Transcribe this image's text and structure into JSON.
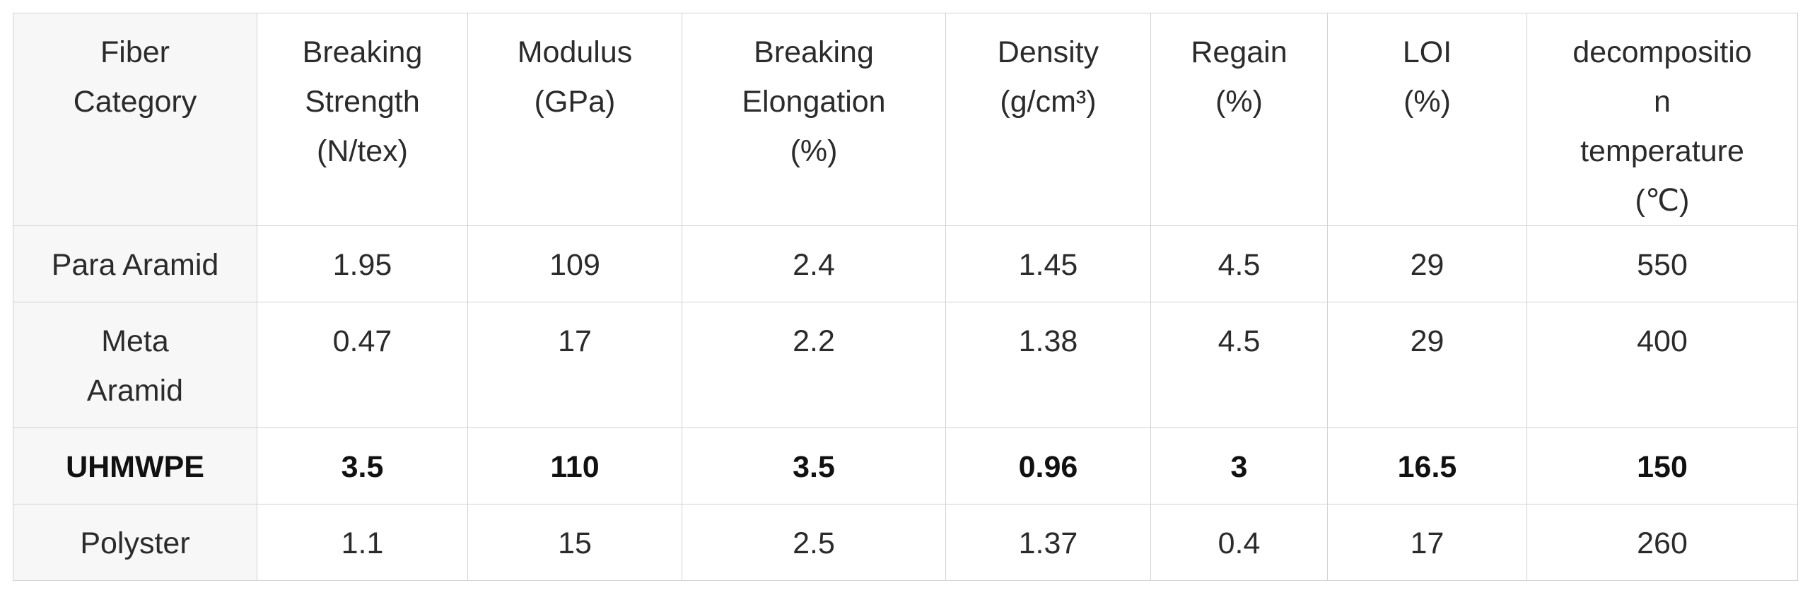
{
  "table": {
    "headers": [
      "Fiber Category",
      "Breaking Strength (N/tex)",
      "Modulus (GPa)",
      "Breaking Elongation (%)",
      "Density (g/cm³)",
      "Regain (%)",
      "LOI (%)",
      "decomposition temperature (℃)"
    ],
    "header_lines": [
      [
        "Fiber",
        "Category"
      ],
      [
        "Breaking",
        "Strength",
        "(N/tex)"
      ],
      [
        "Modulus",
        "(GPa)"
      ],
      [
        "Breaking",
        "Elongation",
        "(%)"
      ],
      [
        "Density",
        "(g/cm³)"
      ],
      [
        "Regain",
        "(%)"
      ],
      [
        "LOI",
        "(%)"
      ],
      [
        "decompositio",
        "n",
        "temperature",
        "(℃)"
      ]
    ],
    "rows": [
      {
        "cells": [
          "Para Aramid",
          "1.95",
          "109",
          "2.4",
          "1.45",
          "4.5",
          "29",
          "550"
        ],
        "bold": false
      },
      {
        "cells": [
          "Meta Aramid",
          "0.47",
          "17",
          "2.2",
          "1.38",
          "4.5",
          "29",
          "400"
        ],
        "bold": false
      },
      {
        "cells": [
          "UHMWPE",
          "3.5",
          "110",
          "3.5",
          "0.96",
          "3",
          "16.5",
          "150"
        ],
        "bold": true
      },
      {
        "cells": [
          "Polyster",
          "1.1",
          "15",
          "2.5",
          "1.37",
          "0.4",
          "17",
          "260"
        ],
        "bold": false
      }
    ]
  },
  "colors": {
    "border": "#d2d2d2",
    "first_column_background": "#f7f7f7",
    "text": "#2b2b2b"
  }
}
